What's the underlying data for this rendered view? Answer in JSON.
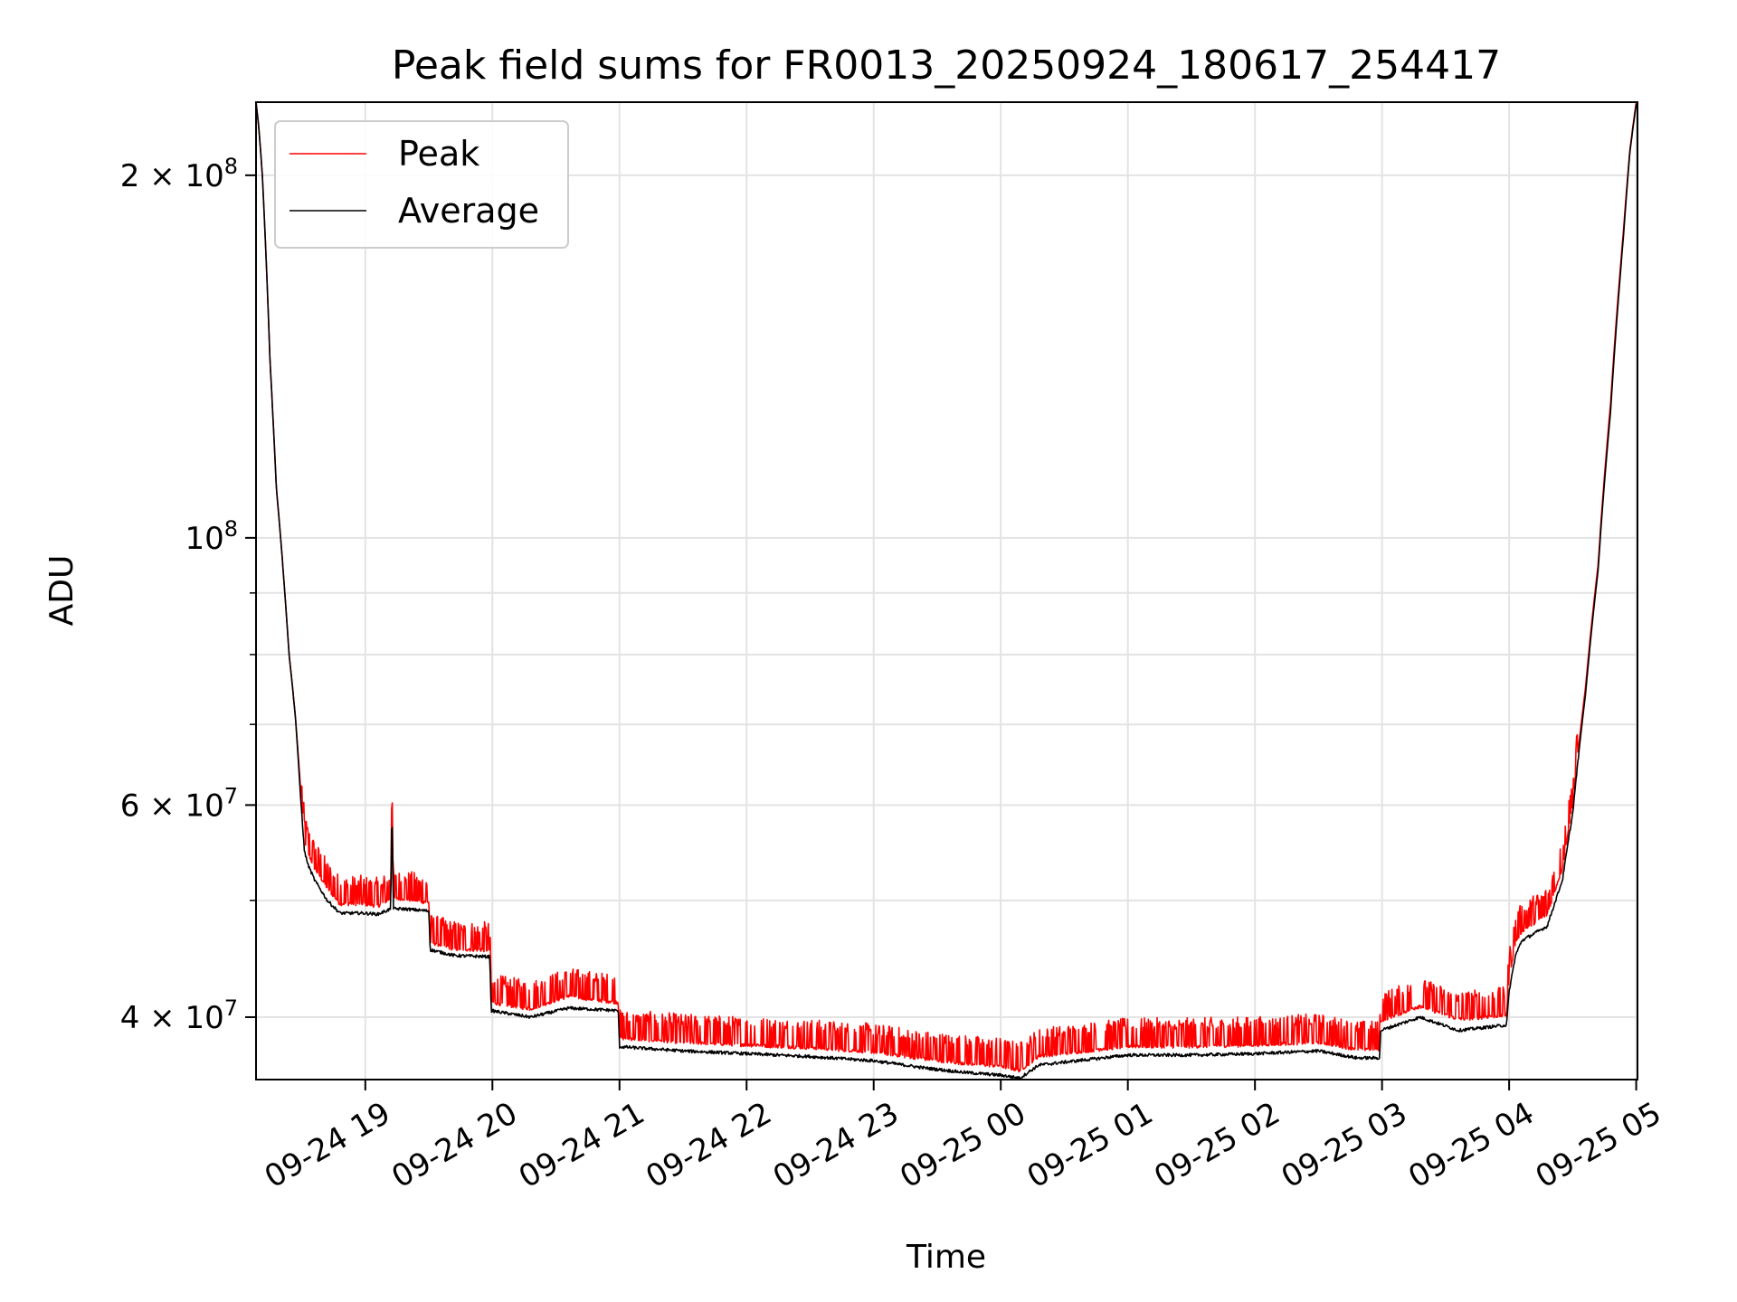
{
  "chart_data": {
    "type": "line",
    "title": "Peak field sums for FR0013_20250924_180617_254417",
    "xlabel": "Time",
    "ylabel": "ADU",
    "yscale": "log",
    "xlim": [
      18.14,
      29.01
    ],
    "ylim": [
      35500000,
      230000000
    ],
    "grid": true,
    "legend_position": "top-left",
    "x_ticks": [
      {
        "value": 19,
        "label": "09-24 19"
      },
      {
        "value": 20,
        "label": "09-24 20"
      },
      {
        "value": 21,
        "label": "09-24 21"
      },
      {
        "value": 22,
        "label": "09-24 22"
      },
      {
        "value": 23,
        "label": "09-24 23"
      },
      {
        "value": 24,
        "label": "09-25 00"
      },
      {
        "value": 25,
        "label": "09-25 01"
      },
      {
        "value": 26,
        "label": "09-25 02"
      },
      {
        "value": 27,
        "label": "09-25 03"
      },
      {
        "value": 28,
        "label": "09-25 04"
      },
      {
        "value": 29,
        "label": "09-25 05"
      }
    ],
    "y_ticks": [
      {
        "value": 40000000,
        "mantissa": "4",
        "exponent": "7"
      },
      {
        "value": 60000000,
        "mantissa": "6",
        "exponent": "7"
      },
      {
        "value": 100000000,
        "mantissa": "",
        "exponent": "8"
      },
      {
        "value": 200000000,
        "mantissa": "2",
        "exponent": "8"
      }
    ],
    "y_minor_ticks": [
      50000000,
      70000000,
      80000000,
      90000000
    ],
    "series": [
      {
        "name": "Peak",
        "color": "#ff0000",
        "x": [
          18.14,
          18.16,
          18.19,
          18.22,
          18.25,
          18.3,
          18.4,
          18.45,
          18.49,
          18.52,
          18.55,
          18.6,
          18.7,
          18.8,
          18.98,
          19.1,
          19.2,
          19.21,
          19.22,
          19.3,
          19.5,
          19.51,
          19.7,
          19.98,
          19.99,
          20.3,
          20.6,
          20.8,
          20.99,
          21.0,
          21.5,
          22.0,
          22.5,
          23.0,
          23.4,
          23.7,
          24.0,
          24.15,
          24.3,
          24.6,
          25.0,
          25.5,
          26.0,
          26.5,
          26.8,
          26.98,
          26.99,
          27.3,
          27.6,
          27.98,
          28.0,
          28.05,
          28.1,
          28.3,
          28.42,
          28.5,
          28.6,
          28.7,
          28.8,
          28.9,
          28.95,
          29.0
        ],
        "values": [
          230000000,
          220000000,
          200000000,
          170000000,
          140000000,
          110000000,
          80000000,
          71000000,
          62000000,
          56000000,
          54500000,
          53000000,
          51000000,
          49500000,
          49500000,
          49300000,
          50000000,
          63000000,
          50000000,
          50000000,
          49600000,
          46000000,
          45400000,
          45300000,
          41000000,
          40500000,
          41500000,
          41200000,
          41000000,
          38300000,
          38000000,
          37800000,
          37600000,
          37300000,
          36800000,
          36500000,
          36300000,
          36000000,
          37000000,
          37300000,
          37700000,
          37700000,
          37800000,
          38000000,
          37500000,
          37500000,
          39600000,
          40700000,
          39700000,
          40000000,
          43000000,
          46000000,
          47000000,
          48500000,
          53000000,
          60000000,
          75000000,
          95000000,
          130000000,
          180000000,
          210000000,
          230000000
        ]
      },
      {
        "name": "Average",
        "color": "#000000",
        "x": [
          18.14,
          18.16,
          18.19,
          18.22,
          18.25,
          18.3,
          18.4,
          18.45,
          18.49,
          18.52,
          18.55,
          18.6,
          18.7,
          18.8,
          18.98,
          19.1,
          19.2,
          19.21,
          19.22,
          19.3,
          19.5,
          19.51,
          19.7,
          19.98,
          19.99,
          20.3,
          20.6,
          20.8,
          20.99,
          21.0,
          21.5,
          22.0,
          22.5,
          23.0,
          23.4,
          23.7,
          24.0,
          24.15,
          24.3,
          24.6,
          25.0,
          25.5,
          26.0,
          26.5,
          26.8,
          26.98,
          26.99,
          27.3,
          27.6,
          27.98,
          28.0,
          28.05,
          28.1,
          28.3,
          28.42,
          28.5,
          28.6,
          28.7,
          28.8,
          28.9,
          28.95,
          29.0
        ],
        "values": [
          230000000,
          220000000,
          200000000,
          170000000,
          140000000,
          110000000,
          80000000,
          71000000,
          61000000,
          55000000,
          53500000,
          52000000,
          50000000,
          48800000,
          48800000,
          48700000,
          49200000,
          60000000,
          49200000,
          49200000,
          49000000,
          45500000,
          45000000,
          44900000,
          40500000,
          40000000,
          40700000,
          40600000,
          40500000,
          37800000,
          37500000,
          37300000,
          37100000,
          36800000,
          36300000,
          36000000,
          35800000,
          35600000,
          36500000,
          36800000,
          37200000,
          37200000,
          37300000,
          37500000,
          37000000,
          37000000,
          39000000,
          40000000,
          39000000,
          39400000,
          42000000,
          45000000,
          46300000,
          47600000,
          52000000,
          59000000,
          74000000,
          94000000,
          128000000,
          178000000,
          209000000,
          229000000
        ]
      }
    ]
  }
}
